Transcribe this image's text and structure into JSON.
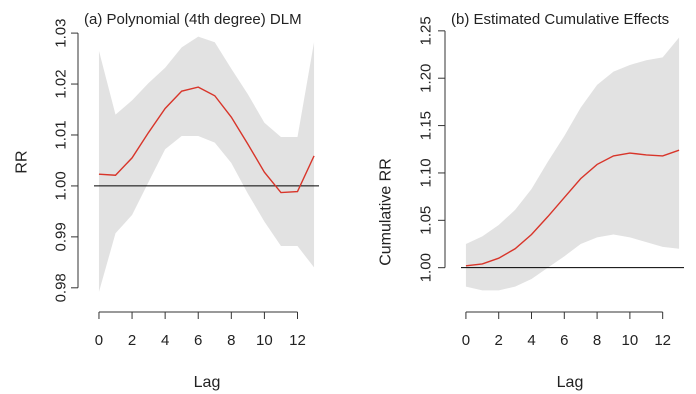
{
  "figure": {
    "colors": {
      "band": "#e2e2e2",
      "line": "#d8352a",
      "reference": "#000000",
      "axis": "#333333"
    }
  },
  "chart_data": [
    {
      "type": "line",
      "title": "(a) Polynomial (4th degree) DLM",
      "xlabel": "Lag",
      "ylabel": "RR",
      "xlim": [
        -0.3,
        13.3
      ],
      "ylim": [
        0.978,
        1.031
      ],
      "xticks": [
        0,
        2,
        4,
        6,
        8,
        10,
        12
      ],
      "xtick_labels": [
        "0",
        "2",
        "4",
        "6",
        "8",
        "10",
        "12"
      ],
      "yticks": [
        0.98,
        0.99,
        1.0,
        1.01,
        1.02,
        1.03
      ],
      "ytick_labels": [
        "0.98",
        "0.99",
        "1.00",
        "1.01",
        "1.02",
        "1.03"
      ],
      "reference_line": 1.0,
      "grid": false,
      "x": [
        0,
        1,
        2,
        3,
        4,
        5,
        6,
        7,
        8,
        9,
        10,
        11,
        12,
        13
      ],
      "series": [
        {
          "values": [
            1.0023,
            1.0021,
            1.0055,
            1.0105,
            1.0152,
            1.0186,
            1.0194,
            1.0177,
            1.0135,
            1.0082,
            1.0027,
            0.9987,
            0.9989,
            1.0059
          ],
          "lower": [
            0.9792,
            0.9907,
            0.9943,
            1.0008,
            1.0072,
            1.0098,
            1.0098,
            1.0085,
            1.0045,
            0.9985,
            0.993,
            0.9882,
            0.9882,
            0.984
          ],
          "upper": [
            1.0265,
            1.014,
            1.0168,
            1.0202,
            1.0232,
            1.0272,
            1.0293,
            1.0282,
            1.023,
            1.018,
            1.0124,
            1.0096,
            1.0096,
            1.0282
          ]
        }
      ]
    },
    {
      "type": "line",
      "title": "(b) Estimated Cumulative Effects",
      "xlabel": "Lag",
      "ylabel": "Cumulative RR",
      "xlim": [
        -0.3,
        13.3
      ],
      "ylim": [
        0.968,
        1.253
      ],
      "xticks": [
        0,
        2,
        4,
        6,
        8,
        10,
        12
      ],
      "xtick_labels": [
        "0",
        "2",
        "4",
        "6",
        "8",
        "10",
        "12"
      ],
      "yticks": [
        1.0,
        1.05,
        1.1,
        1.15,
        1.2,
        1.25
      ],
      "ytick_labels": [
        "1.00",
        "1.05",
        "1.10",
        "1.15",
        "1.20",
        "1.25"
      ],
      "reference_line": 1.0,
      "grid": false,
      "x": [
        0,
        1,
        2,
        3,
        4,
        5,
        6,
        7,
        8,
        9,
        10,
        11,
        12,
        13
      ],
      "series": [
        {
          "values": [
            1.002,
            1.004,
            1.01,
            1.02,
            1.035,
            1.054,
            1.074,
            1.094,
            1.109,
            1.118,
            1.121,
            1.119,
            1.118,
            1.124
          ],
          "lower": [
            0.98,
            0.976,
            0.976,
            0.98,
            0.988,
            1.0,
            1.012,
            1.025,
            1.032,
            1.035,
            1.032,
            1.027,
            1.022,
            1.02
          ],
          "upper": [
            1.025,
            1.033,
            1.045,
            1.061,
            1.083,
            1.112,
            1.139,
            1.169,
            1.193,
            1.207,
            1.214,
            1.219,
            1.222,
            1.243
          ]
        }
      ]
    }
  ]
}
